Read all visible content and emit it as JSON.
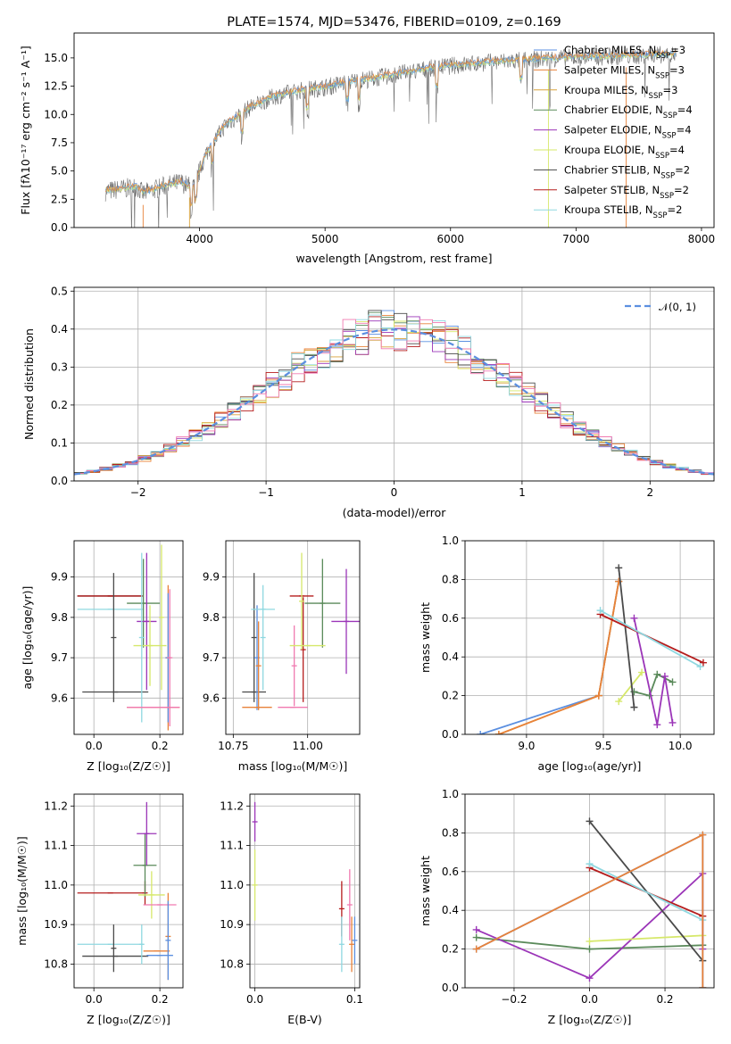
{
  "colors": {
    "chabrier_miles": "#5b8fe0",
    "salpeter_miles": "#e8823a",
    "kroupa_miles": "#d9a23a",
    "chabrier_elodie": "#5a8a5a",
    "salpeter_elodie": "#9b35b8",
    "kroupa_elodie": "#d6e86a",
    "chabrier_stelib": "#4a4a4a",
    "salpeter_stelib": "#b51d1d",
    "kroupa_stelib": "#8fd8e0",
    "pink": "#f07ab0",
    "gauss": "#5b8fe0"
  },
  "chart_data": [
    {
      "id": "spectrum",
      "type": "line",
      "title": "PLATE=1574, MJD=53476, FIBERID=0109, z=0.169",
      "xlabel": "wavelength [Angstrom, rest frame]",
      "ylabel": "Flux [fλ10⁻¹⁷ erg cm⁻² s⁻¹ A⁻¹]",
      "xlim": [
        3000,
        8100
      ],
      "ylim": [
        0,
        17.2
      ],
      "xticks": [
        4000,
        5000,
        6000,
        7000,
        8000
      ],
      "yticks": [
        0.0,
        2.5,
        5.0,
        7.5,
        10.0,
        12.5,
        15.0
      ],
      "legend_position": "top-right",
      "legend": [
        "Chabrier MILES, N_SSP=3",
        "Salpeter MILES, N_SSP=3",
        "Kroupa MILES, N_SSP=3",
        "Chabrier ELODIE, N_SSP=4",
        "Salpeter ELODIE, N_SSP=4",
        "Kroupa ELODIE, N_SSP=4",
        "Chabrier STELIB, N_SSP=2",
        "Salpeter STELIB, N_SSP=2",
        "Kroupa STELIB, N_SSP=2"
      ],
      "continuum": {
        "x": [
          3250,
          3500,
          3550,
          3700,
          3850,
          3950,
          4050,
          4200,
          4400,
          4600,
          4800,
          5000,
          5200,
          5400,
          5600,
          5800,
          6000,
          6300,
          6600,
          6900,
          7200,
          7500,
          7800
        ],
        "y": [
          3.2,
          3.6,
          3.0,
          3.6,
          4.0,
          3.5,
          6.5,
          9.0,
          10.6,
          11.6,
          12.1,
          12.4,
          12.9,
          13.2,
          13.6,
          14.0,
          14.3,
          14.6,
          14.8,
          15.0,
          15.1,
          15.2,
          15.3
        ]
      }
    },
    {
      "id": "residuals",
      "type": "line",
      "xlabel": "(data-model)/error",
      "ylabel": "Normed distribution",
      "xlim": [
        -2.5,
        2.5
      ],
      "ylim": [
        0,
        0.51
      ],
      "xticks": [
        -2,
        -1,
        0,
        1,
        2
      ],
      "yticks": [
        0.0,
        0.1,
        0.2,
        0.3,
        0.4,
        0.5
      ],
      "grid": true,
      "legend": [
        "𝒩(0, 1)"
      ],
      "legend_position": "top-right",
      "bin_width": 0.1
    },
    {
      "id": "age_vs_Z",
      "type": "scatter",
      "xlabel": "Z [log₁₀(Z/Z☉)]",
      "ylabel": "age  [log₁₀(age/yr)]",
      "xlim": [
        -0.06,
        0.27
      ],
      "ylim": [
        9.51,
        9.99
      ],
      "xticks": [
        0.0,
        0.2
      ],
      "yticks": [
        9.6,
        9.7,
        9.8,
        9.9
      ],
      "grid": true,
      "points": [
        {
          "c": "chabrier_stelib",
          "x": 0.05,
          "y": 9.853,
          "xe": 0.1,
          "ye": 0
        },
        {
          "c": "salpeter_stelib",
          "x": 0.05,
          "y": 9.853,
          "xe": 0.1,
          "ye": 0
        },
        {
          "c": "kroupa_stelib",
          "x": 0.05,
          "y": 9.82,
          "xe": 0.1,
          "ye": 0
        },
        {
          "c": "chabrier_stelib",
          "x": 0.06,
          "y": 9.75,
          "xe": 0,
          "ye": 0.16
        },
        {
          "c": "chabrier_stelib",
          "x": 0.065,
          "y": 9.615,
          "xe": 0.1,
          "ye": 0
        },
        {
          "c": "chabrier_elodie",
          "x": 0.15,
          "y": 9.835,
          "xe": 0.05,
          "ye": 0.11
        },
        {
          "c": "salpeter_elodie",
          "x": 0.16,
          "y": 9.79,
          "xe": 0.03,
          "ye": 0.17
        },
        {
          "c": "kroupa_elodie",
          "x": 0.17,
          "y": 9.73,
          "xe": 0.05,
          "ye": 0.1
        },
        {
          "c": "kroupa_stelib",
          "x": 0.145,
          "y": 9.75,
          "xe": 0,
          "ye": 0.21
        },
        {
          "c": "kroupa_elodie",
          "x": 0.205,
          "y": 9.8,
          "xe": 0,
          "ye": 0.18
        },
        {
          "c": "salpeter_miles",
          "x": 0.225,
          "y": 9.7,
          "xe": 0,
          "ye": 0.18
        },
        {
          "c": "chabrier_miles",
          "x": 0.225,
          "y": 9.7,
          "xe": 0,
          "ye": 0.16
        },
        {
          "c": "pink",
          "x": 0.23,
          "y": 9.7,
          "xe": 0,
          "ye": 0.17
        },
        {
          "c": "salpeter_miles",
          "x": 0.18,
          "y": 9.577,
          "xe": 0.08,
          "ye": 0
        },
        {
          "c": "pink",
          "x": 0.18,
          "y": 9.577,
          "xe": 0.08,
          "ye": 0
        }
      ]
    },
    {
      "id": "age_vs_mass",
      "type": "scatter",
      "xlabel": "mass [log₁₀(M/M☉)]",
      "xlim": [
        10.725,
        11.175
      ],
      "ylim": [
        9.51,
        9.99
      ],
      "xticks": [
        10.75,
        11.0
      ],
      "yticks": [
        9.6,
        9.7,
        9.8,
        9.9
      ],
      "grid": true,
      "points": [
        {
          "c": "chabrier_stelib",
          "x": 10.82,
          "y": 9.75,
          "xe": 0,
          "ye": 0.16
        },
        {
          "c": "chabrier_stelib",
          "x": 10.82,
          "y": 9.615,
          "xe": 0.04,
          "ye": 0
        },
        {
          "c": "chabrier_miles",
          "x": 10.83,
          "y": 9.7,
          "xe": 0,
          "ye": 0.13
        },
        {
          "c": "salpeter_miles",
          "x": 10.83,
          "y": 9.577,
          "xe": 0.05,
          "ye": 0
        },
        {
          "c": "salpeter_miles",
          "x": 10.835,
          "y": 9.68,
          "xe": 0,
          "ye": 0.11
        },
        {
          "c": "kroupa_stelib",
          "x": 10.85,
          "y": 9.75,
          "xe": 0,
          "ye": 0.13
        },
        {
          "c": "kroupa_stelib",
          "x": 10.85,
          "y": 9.82,
          "xe": 0.04,
          "ye": 0
        },
        {
          "c": "salpeter_stelib",
          "x": 10.98,
          "y": 9.853,
          "xe": 0.04,
          "ye": 0
        },
        {
          "c": "salpeter_stelib",
          "x": 10.985,
          "y": 9.72,
          "xe": 0,
          "ye": 0.13
        },
        {
          "c": "pink",
          "x": 10.95,
          "y": 9.577,
          "xe": 0.05,
          "ye": 0
        },
        {
          "c": "pink",
          "x": 10.955,
          "y": 9.68,
          "xe": 0,
          "ye": 0.1
        },
        {
          "c": "chabrier_elodie",
          "x": 11.05,
          "y": 9.835,
          "xe": 0.06,
          "ye": 0.11
        },
        {
          "c": "kroupa_elodie",
          "x": 11.0,
          "y": 9.73,
          "xe": 0.06,
          "ye": 0
        },
        {
          "c": "kroupa_elodie",
          "x": 10.98,
          "y": 9.84,
          "xe": 0,
          "ye": 0.12
        },
        {
          "c": "salpeter_elodie",
          "x": 11.13,
          "y": 9.79,
          "xe": 0.05,
          "ye": 0.13
        }
      ]
    },
    {
      "id": "weight_vs_age",
      "type": "line",
      "xlabel": "age  [log₁₀(age/yr)]",
      "ylabel": "mass weight",
      "xlim": [
        8.6,
        10.22
      ],
      "ylim": [
        0,
        1.0
      ],
      "xticks": [
        9.0,
        9.5,
        10.0
      ],
      "yticks": [
        0.0,
        0.2,
        0.4,
        0.6,
        0.8,
        1.0
      ],
      "grid": true,
      "series": [
        {
          "c": "chabrier_miles",
          "x": [
            8.7,
            9.47,
            9.6
          ],
          "y": [
            0.0,
            0.2,
            0.79
          ]
        },
        {
          "c": "kroupa_miles",
          "x": [
            8.82,
            9.47,
            9.6
          ],
          "y": [
            0.0,
            0.2,
            0.79
          ]
        },
        {
          "c": "salpeter_miles",
          "x": [
            8.82,
            9.47,
            9.6
          ],
          "y": [
            0.0,
            0.2,
            0.79
          ]
        },
        {
          "c": "chabrier_elodie",
          "x": [
            9.7,
            9.8,
            9.85,
            9.95
          ],
          "y": [
            0.22,
            0.2,
            0.31,
            0.27
          ]
        },
        {
          "c": "salpeter_elodie",
          "x": [
            9.7,
            9.85,
            9.9,
            9.95
          ],
          "y": [
            0.6,
            0.05,
            0.3,
            0.06
          ]
        },
        {
          "c": "kroupa_elodie",
          "x": [
            9.6,
            9.75
          ],
          "y": [
            0.17,
            0.32
          ]
        },
        {
          "c": "chabrier_stelib",
          "x": [
            9.6,
            9.7
          ],
          "y": [
            0.86,
            0.14
          ]
        },
        {
          "c": "salpeter_stelib",
          "x": [
            9.48,
            10.15
          ],
          "y": [
            0.62,
            0.37
          ]
        },
        {
          "c": "kroupa_stelib",
          "x": [
            9.48,
            10.13
          ],
          "y": [
            0.64,
            0.35
          ]
        }
      ]
    },
    {
      "id": "mass_vs_Z",
      "type": "scatter",
      "xlabel": "Z [log₁₀(Z/Z☉)]",
      "ylabel": "mass [log₁₀(M/M☉)]",
      "xlim": [
        -0.06,
        0.27
      ],
      "ylim": [
        10.74,
        11.23
      ],
      "xticks": [
        0.0,
        0.2
      ],
      "yticks": [
        10.8,
        10.9,
        11.0,
        11.1,
        11.2
      ],
      "grid": true,
      "points": [
        {
          "c": "salpeter_stelib",
          "x": 0.05,
          "y": 10.98,
          "xe": 0.1,
          "ye": 0
        },
        {
          "c": "salpeter_stelib",
          "x": 0.155,
          "y": 10.98,
          "xe": 0,
          "ye": 0.03
        },
        {
          "c": "kroupa_stelib",
          "x": 0.05,
          "y": 10.85,
          "xe": 0.1,
          "ye": 0
        },
        {
          "c": "chabrier_stelib",
          "x": 0.065,
          "y": 10.82,
          "xe": 0.1,
          "ye": 0
        },
        {
          "c": "chabrier_stelib",
          "x": 0.06,
          "y": 10.84,
          "xe": 0,
          "ye": 0.06
        },
        {
          "c": "kroupa_stelib",
          "x": 0.145,
          "y": 10.85,
          "xe": 0,
          "ye": 0.05
        },
        {
          "c": "chabrier_elodie",
          "x": 0.155,
          "y": 11.05,
          "xe": 0.035,
          "ye": 0.08
        },
        {
          "c": "salpeter_elodie",
          "x": 0.16,
          "y": 11.13,
          "xe": 0.03,
          "ye": 0.08
        },
        {
          "c": "kroupa_elodie",
          "x": 0.175,
          "y": 10.975,
          "xe": 0.04,
          "ye": 0.06
        },
        {
          "c": "pink",
          "x": 0.2,
          "y": 10.95,
          "xe": 0.05,
          "ye": 0
        },
        {
          "c": "salpeter_miles",
          "x": 0.19,
          "y": 10.833,
          "xe": 0.04,
          "ye": 0
        },
        {
          "c": "salpeter_miles",
          "x": 0.225,
          "y": 10.87,
          "xe": 0,
          "ye": 0.11
        },
        {
          "c": "chabrier_miles",
          "x": 0.2,
          "y": 10.822,
          "xe": 0.04,
          "ye": 0
        },
        {
          "c": "chabrier_miles",
          "x": 0.225,
          "y": 10.86,
          "xe": 0,
          "ye": 0.1
        }
      ]
    },
    {
      "id": "mass_vs_ebv",
      "type": "scatter",
      "xlabel": "E(B-V)",
      "xlim": [
        -0.005,
        0.105
      ],
      "ylim": [
        10.74,
        11.23
      ],
      "xticks": [
        0.0,
        0.1
      ],
      "yticks": [
        10.8,
        10.9,
        11.0,
        11.1,
        11.2
      ],
      "grid": true,
      "points": [
        {
          "c": "salpeter_elodie",
          "x": 0.0,
          "y": 11.16,
          "xe": 0,
          "ye": 0.05
        },
        {
          "c": "kroupa_elodie",
          "x": 0.0,
          "y": 11.0,
          "xe": 0,
          "ye": 0.09
        },
        {
          "c": "salpeter_stelib",
          "x": 0.087,
          "y": 10.94,
          "xe": 0,
          "ye": 0.07
        },
        {
          "c": "kroupa_stelib",
          "x": 0.087,
          "y": 10.85,
          "xe": 0,
          "ye": 0.07
        },
        {
          "c": "pink",
          "x": 0.095,
          "y": 10.95,
          "xe": 0,
          "ye": 0.09
        },
        {
          "c": "salpeter_miles",
          "x": 0.097,
          "y": 10.85,
          "xe": 0,
          "ye": 0.07
        },
        {
          "c": "chabrier_miles",
          "x": 0.1,
          "y": 10.86,
          "xe": 0,
          "ye": 0.06
        }
      ]
    },
    {
      "id": "weight_vs_Z",
      "type": "line",
      "xlabel": "Z [log₁₀(Z/Z☉)]",
      "ylabel": "mass weight",
      "xlim": [
        -0.33,
        0.33
      ],
      "ylim": [
        0,
        1.0
      ],
      "xticks": [
        -0.2,
        0.0,
        0.2
      ],
      "yticks": [
        0.0,
        0.2,
        0.4,
        0.6,
        0.8,
        1.0
      ],
      "grid": true,
      "series": [
        {
          "c": "chabrier_elodie",
          "x": [
            -0.3,
            0.0,
            0.3
          ],
          "y": [
            0.26,
            0.2,
            0.22
          ]
        },
        {
          "c": "salpeter_elodie",
          "x": [
            -0.3,
            0.0,
            0.3,
            0.3
          ],
          "y": [
            0.3,
            0.05,
            0.59,
            0.2
          ]
        },
        {
          "c": "kroupa_elodie",
          "x": [
            0.0,
            0.3
          ],
          "y": [
            0.24,
            0.27
          ]
        },
        {
          "c": "chabrier_stelib",
          "x": [
            0.0,
            0.3
          ],
          "y": [
            0.86,
            0.14
          ]
        },
        {
          "c": "salpeter_stelib",
          "x": [
            0.0,
            0.3
          ],
          "y": [
            0.62,
            0.37
          ]
        },
        {
          "c": "kroupa_stelib",
          "x": [
            0.0,
            0.3
          ],
          "y": [
            0.64,
            0.35
          ]
        },
        {
          "c": "chabrier_miles",
          "x": [
            -0.3,
            0.3,
            0.3
          ],
          "y": [
            0.2,
            0.79,
            0.0
          ]
        },
        {
          "c": "salpeter_miles",
          "x": [
            -0.3,
            0.3,
            0.3
          ],
          "y": [
            0.2,
            0.79,
            0.0
          ]
        }
      ]
    }
  ]
}
